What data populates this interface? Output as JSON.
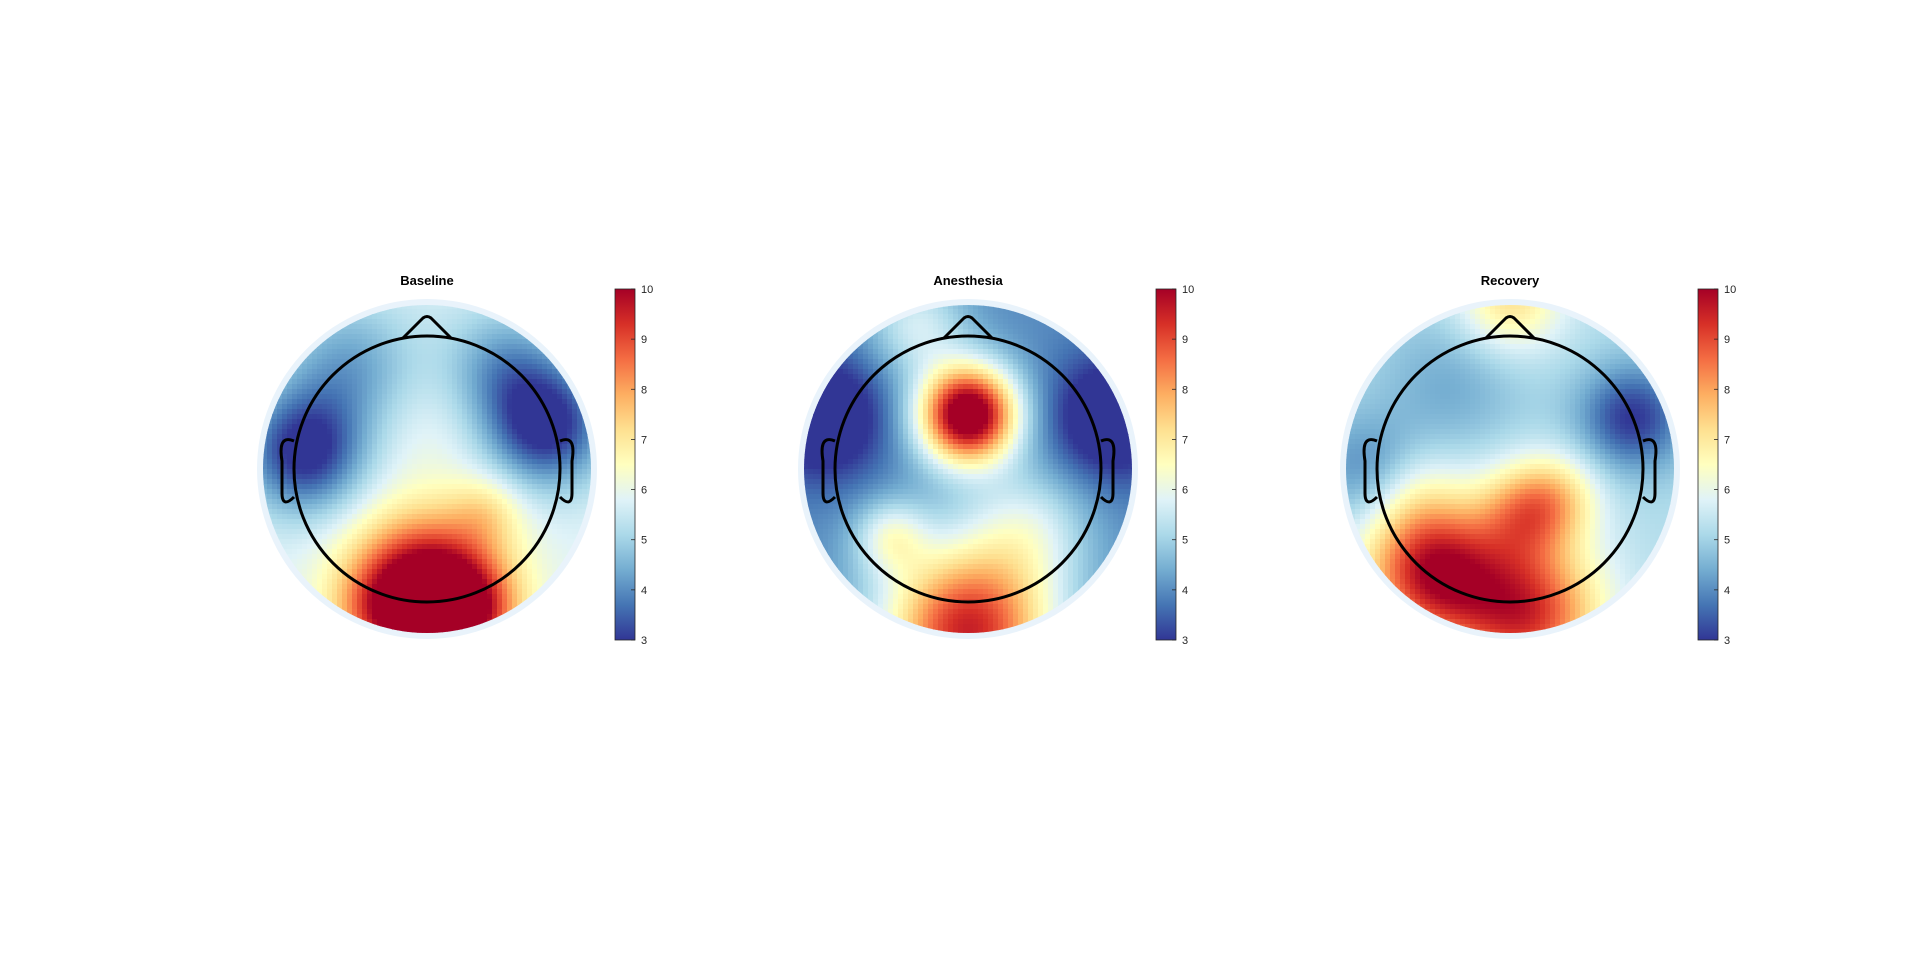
{
  "chart_data": [
    {
      "type": "heatmap",
      "title": "Baseline",
      "colorbar": {
        "ticks": [
          "3",
          "4",
          "5",
          "6",
          "7",
          "8",
          "9",
          "10"
        ],
        "range": [
          3,
          10
        ]
      },
      "background_value": 5.8,
      "blobs": [
        {
          "cx": 0.0,
          "cy": -0.72,
          "s": 0.3,
          "a": 5.2
        },
        {
          "cx": 0.22,
          "cy": -0.85,
          "s": 0.2,
          "a": 2.5
        },
        {
          "cx": -0.25,
          "cy": -0.85,
          "s": 0.2,
          "a": 1.5
        },
        {
          "cx": 0.35,
          "cy": -0.25,
          "s": 0.15,
          "a": 1.0
        },
        {
          "cx": 0.0,
          "cy": 0.25,
          "s": 0.28,
          "a": 0.3
        },
        {
          "cx": -0.72,
          "cy": 0.1,
          "s": 0.25,
          "a": -3.0
        },
        {
          "cx": 0.7,
          "cy": 0.25,
          "s": 0.25,
          "a": -3.0
        },
        {
          "cx": -0.45,
          "cy": 0.6,
          "s": 0.28,
          "a": -1.5
        },
        {
          "cx": 0.45,
          "cy": 0.6,
          "s": 0.25,
          "a": -1.5
        }
      ]
    },
    {
      "type": "heatmap",
      "title": "Anesthesia",
      "colorbar": {
        "ticks": [
          "3",
          "4",
          "5",
          "6",
          "7",
          "8",
          "9",
          "10"
        ],
        "range": [
          3,
          10
        ]
      },
      "background_value": 4.0,
      "blobs": [
        {
          "cx": 0.0,
          "cy": 0.32,
          "s": 0.2,
          "a": 7.0
        },
        {
          "cx": 0.0,
          "cy": -0.95,
          "s": 0.35,
          "a": 5.5
        },
        {
          "cx": -0.45,
          "cy": -0.4,
          "s": 0.15,
          "a": 1.8
        },
        {
          "cx": 0.35,
          "cy": -0.35,
          "s": 0.25,
          "a": 1.5
        },
        {
          "cx": -0.3,
          "cy": 0.85,
          "s": 0.2,
          "a": 1.6
        },
        {
          "cx": -0.85,
          "cy": 0.3,
          "s": 0.25,
          "a": -2.0
        },
        {
          "cx": 0.85,
          "cy": 0.3,
          "s": 0.25,
          "a": -2.0
        }
      ]
    },
    {
      "type": "heatmap",
      "title": "Recovery",
      "colorbar": {
        "ticks": [
          "3",
          "4",
          "5",
          "6",
          "7",
          "8",
          "9",
          "10"
        ],
        "range": [
          3,
          10
        ]
      },
      "background_value": 5.2,
      "blobs": [
        {
          "cx": -0.45,
          "cy": -0.6,
          "s": 0.28,
          "a": 4.5
        },
        {
          "cx": 0.1,
          "cy": -0.85,
          "s": 0.3,
          "a": 4.0
        },
        {
          "cx": 0.1,
          "cy": -0.25,
          "s": 0.2,
          "a": 2.5
        },
        {
          "cx": 0.3,
          "cy": -0.15,
          "s": 0.18,
          "a": 1.2
        },
        {
          "cx": -0.55,
          "cy": -0.15,
          "s": 0.2,
          "a": 0.8
        },
        {
          "cx": 0.0,
          "cy": 1.0,
          "s": 0.22,
          "a": 2.0
        },
        {
          "cx": 0.72,
          "cy": 0.3,
          "s": 0.22,
          "a": -2.2
        },
        {
          "cx": -0.85,
          "cy": 0.0,
          "s": 0.22,
          "a": -1.2
        },
        {
          "cx": -0.35,
          "cy": 0.5,
          "s": 0.3,
          "a": -0.8
        }
      ]
    }
  ]
}
